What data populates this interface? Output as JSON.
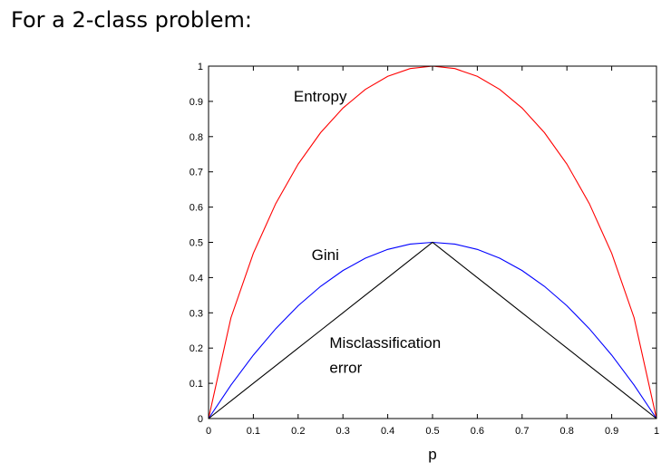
{
  "slide": {
    "title": "For a 2-class problem:"
  },
  "chart_data": {
    "type": "line",
    "xlabel": "p",
    "ylabel": "",
    "xlim": [
      0,
      1
    ],
    "ylim": [
      0,
      1
    ],
    "xticks": [
      "0",
      "0.1",
      "0.2",
      "0.3",
      "0.4",
      "0.5",
      "0.6",
      "0.7",
      "0.8",
      "0.9",
      "1"
    ],
    "yticks": [
      "0",
      "0.1",
      "0.2",
      "0.3",
      "0.4",
      "0.5",
      "0.6",
      "0.7",
      "0.8",
      "0.9",
      "1"
    ],
    "grid": false,
    "x": [
      0,
      0.05,
      0.1,
      0.15,
      0.2,
      0.25,
      0.3,
      0.35,
      0.4,
      0.45,
      0.5,
      0.55,
      0.6,
      0.65,
      0.7,
      0.75,
      0.8,
      0.85,
      0.9,
      0.95,
      1
    ],
    "series": [
      {
        "color": "#ff0000",
        "values": [
          0,
          0.286,
          0.469,
          0.61,
          0.722,
          0.811,
          0.881,
          0.934,
          0.971,
          0.993,
          1,
          0.993,
          0.971,
          0.934,
          0.881,
          0.811,
          0.722,
          0.61,
          0.469,
          0.286,
          0
        ]
      },
      {
        "color": "#0000ff",
        "values": [
          0,
          0.095,
          0.18,
          0.255,
          0.32,
          0.375,
          0.42,
          0.455,
          0.48,
          0.495,
          0.5,
          0.495,
          0.48,
          0.455,
          0.42,
          0.375,
          0.32,
          0.255,
          0.18,
          0.095,
          0
        ]
      },
      {
        "color": "#000000",
        "values": [
          0,
          0.05,
          0.1,
          0.15,
          0.2,
          0.25,
          0.3,
          0.35,
          0.4,
          0.45,
          0.5,
          0.45,
          0.4,
          0.35,
          0.3,
          0.25,
          0.2,
          0.15,
          0.1,
          0.05,
          0
        ]
      }
    ],
    "annotations": [
      {
        "text": "Entropy",
        "x": 0.19,
        "y": 0.9
      },
      {
        "text": "Gini",
        "x": 0.23,
        "y": 0.45
      },
      {
        "text": "Misclassification",
        "x": 0.27,
        "y": 0.2
      },
      {
        "text": "error",
        "x": 0.27,
        "y": 0.13
      }
    ]
  }
}
